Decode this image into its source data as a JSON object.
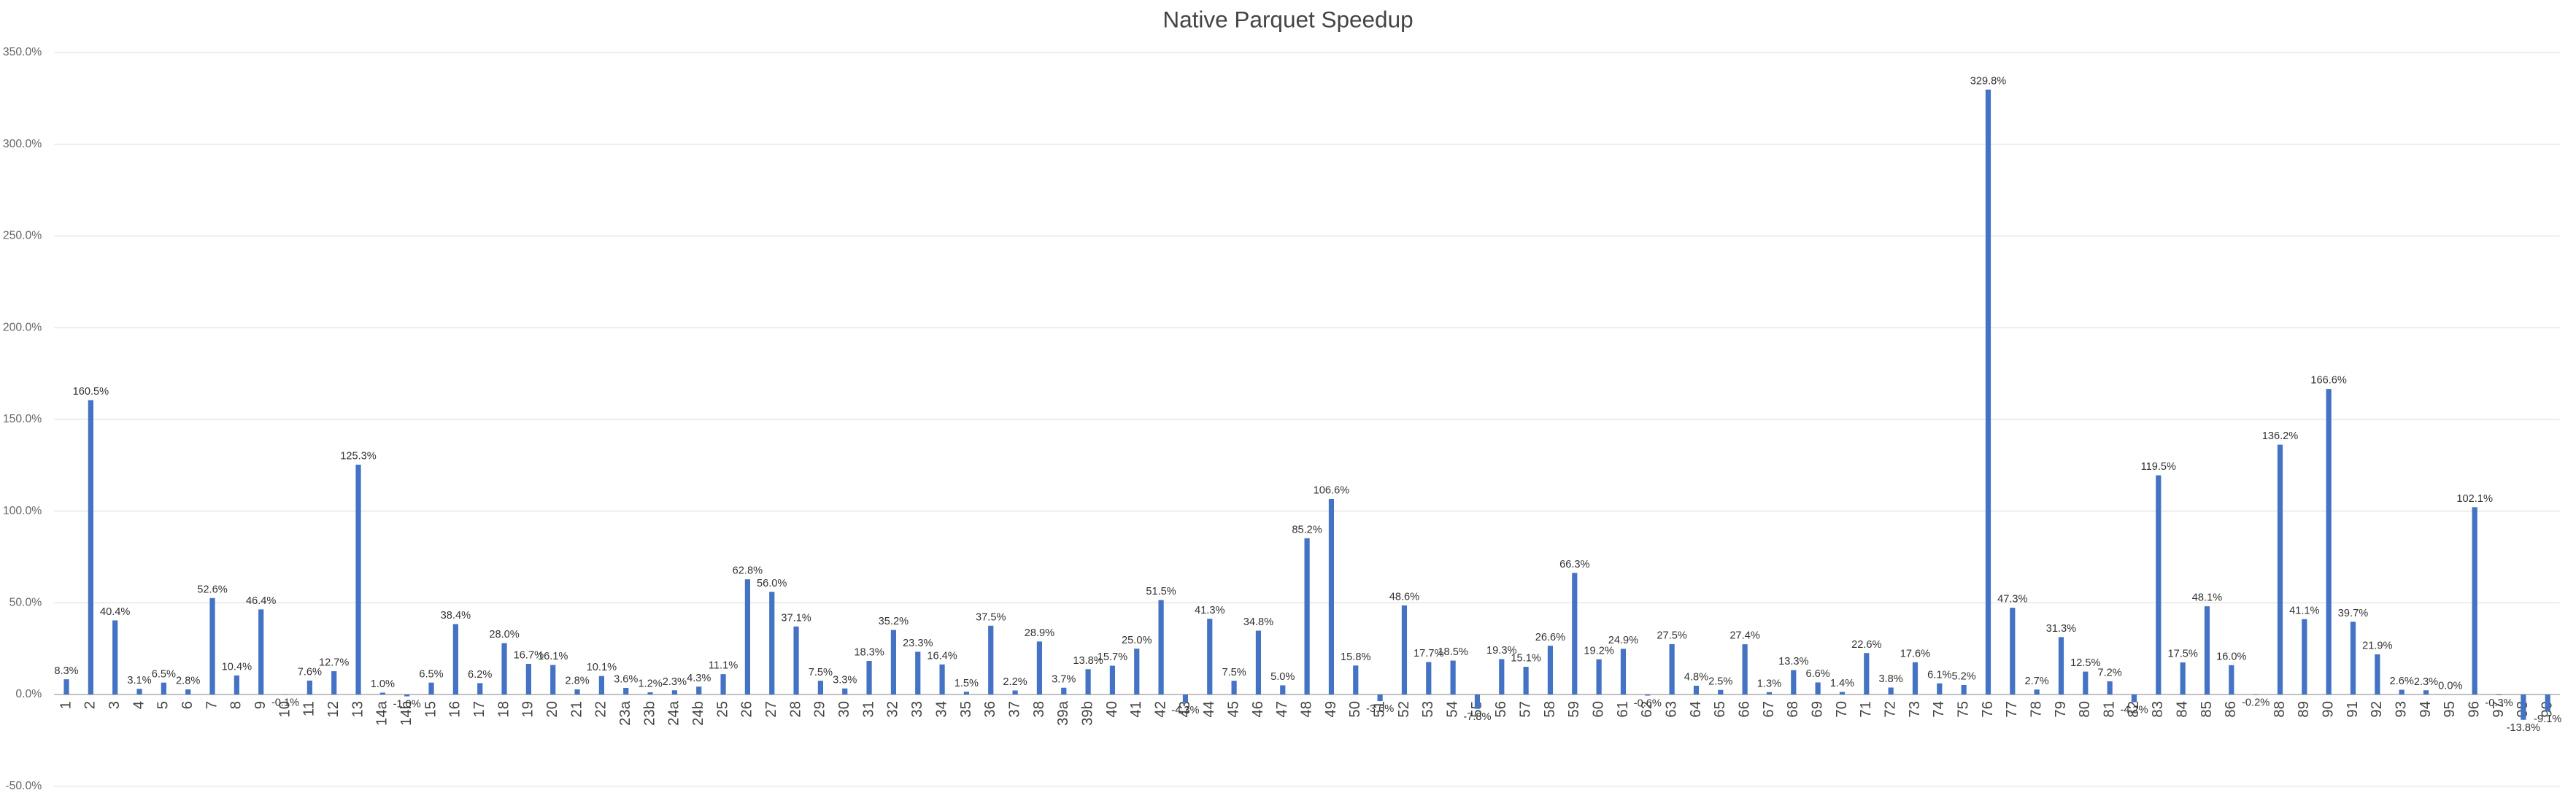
{
  "chart_data": {
    "type": "bar",
    "title": "Native Parquet Speedup",
    "color": "#4472c4",
    "grid": true,
    "categories": [
      "1",
      "2",
      "3",
      "4",
      "5",
      "6",
      "7",
      "8",
      "9",
      "10",
      "11",
      "12",
      "13",
      "14a",
      "14b",
      "15",
      "16",
      "17",
      "18",
      "19",
      "20",
      "21",
      "22",
      "23a",
      "23b",
      "24a",
      "24b",
      "25",
      "26",
      "27",
      "28",
      "29",
      "30",
      "31",
      "32",
      "33",
      "34",
      "35",
      "36",
      "37",
      "38",
      "39a",
      "39b",
      "40",
      "41",
      "42",
      "43",
      "44",
      "45",
      "46",
      "47",
      "48",
      "49",
      "50",
      "51",
      "52",
      "53",
      "54",
      "55",
      "56",
      "57",
      "58",
      "59",
      "60",
      "61",
      "62",
      "63",
      "64",
      "65",
      "66",
      "67",
      "68",
      "69",
      "70",
      "71",
      "72",
      "73",
      "74",
      "75",
      "76",
      "77",
      "78",
      "79",
      "80",
      "81",
      "82",
      "83",
      "84",
      "85",
      "86",
      null,
      "88",
      "89",
      "90",
      "91",
      "92",
      "93",
      "94",
      "95",
      "96",
      "97",
      "98",
      "99"
    ],
    "values": [
      8.3,
      160.5,
      40.4,
      3.1,
      6.5,
      2.8,
      52.6,
      10.4,
      46.4,
      -0.1,
      7.6,
      12.7,
      125.3,
      1.0,
      -1.0,
      6.5,
      38.4,
      6.2,
      28.0,
      16.7,
      16.1,
      2.8,
      10.1,
      3.6,
      1.2,
      2.3,
      4.3,
      11.1,
      62.8,
      56.0,
      37.1,
      7.5,
      3.3,
      18.3,
      35.2,
      23.3,
      16.4,
      1.5,
      37.5,
      2.2,
      28.9,
      3.7,
      13.8,
      15.7,
      25.0,
      51.5,
      -4.3,
      41.3,
      7.5,
      34.8,
      5.0,
      85.2,
      106.6,
      15.8,
      -3.6,
      48.6,
      17.7,
      18.5,
      -7.8,
      19.3,
      15.1,
      26.6,
      66.3,
      19.2,
      24.9,
      -0.6,
      27.5,
      4.8,
      2.5,
      27.4,
      1.3,
      13.3,
      6.6,
      1.4,
      22.6,
      3.8,
      17.6,
      6.1,
      5.2,
      329.8,
      47.3,
      2.7,
      31.3,
      12.5,
      7.2,
      -4.2,
      119.5,
      17.5,
      48.1,
      16.0,
      -0.2,
      136.2,
      41.1,
      166.6,
      39.7,
      21.9,
      2.6,
      2.3,
      0.0,
      102.1,
      -0.3,
      -13.8,
      -9.1
    ],
    "value_labels": [
      "8.3%",
      "160.5%",
      "40.4%",
      "3.1%",
      "6.5%",
      "2.8%",
      "52.6%",
      "10.4%",
      "46.4%",
      "-0.1%",
      "7.6%",
      "12.7%",
      "125.3%",
      "1.0%",
      "-1.0%",
      "6.5%",
      "38.4%",
      "6.2%",
      "28.0%",
      "16.7%",
      "16.1%",
      "2.8%",
      "10.1%",
      "3.6%",
      "1.2%",
      "2.3%",
      "4.3%",
      "11.1%",
      "62.8%",
      "56.0%",
      "37.1%",
      "7.5%",
      "3.3%",
      "18.3%",
      "35.2%",
      "23.3%",
      "16.4%",
      "1.5%",
      "37.5%",
      "2.2%",
      "28.9%",
      "3.7%",
      "13.8%",
      "15.7%",
      "25.0%",
      "51.5%",
      "-4.3%",
      "41.3%",
      "7.5%",
      "34.8%",
      "5.0%",
      "85.2%",
      "106.6%",
      "15.8%",
      "-3.6%",
      "48.6%",
      "17.7%",
      "18.5%",
      "-7.8%",
      "19.3%",
      "15.1%",
      "26.6%",
      "66.3%",
      "19.2%",
      "24.9%",
      "-0.6%",
      "27.5%",
      "4.8%",
      "2.5%",
      "27.4%",
      "1.3%",
      "13.3%",
      "6.6%",
      "1.4%",
      "22.6%",
      "3.8%",
      "17.6%",
      "6.1%",
      "5.2%",
      "329.8%",
      "47.3%",
      "2.7%",
      "31.3%",
      "12.5%",
      "7.2%",
      "-4.2%",
      "119.5%",
      "17.5%",
      "48.1%",
      "16.0%",
      "-0.2%",
      "136.2%",
      "41.1%",
      "166.6%",
      "39.7%",
      "21.9%",
      "2.6%",
      "2.3%",
      "0.0%",
      "102.1%",
      "-0.3%",
      "-13.8%",
      "-9.1%"
    ],
    "ylim": [
      -50,
      350
    ],
    "yticks": [
      {
        "value": -50,
        "label": "-50.0%"
      },
      {
        "value": 0,
        "label": "0.0%"
      },
      {
        "value": 50,
        "label": "50.0%"
      },
      {
        "value": 100,
        "label": "100.0%"
      },
      {
        "value": 150,
        "label": "150.0%"
      },
      {
        "value": 200,
        "label": "200.0%"
      },
      {
        "value": 250,
        "label": "250.0%"
      },
      {
        "value": 300,
        "label": "300.0%"
      },
      {
        "value": 350,
        "label": "350.0%"
      }
    ]
  }
}
